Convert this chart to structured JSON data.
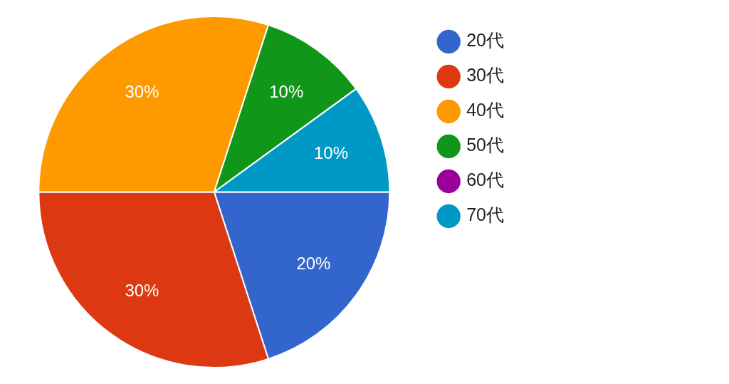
{
  "chart_data": {
    "type": "pie",
    "categories": [
      "20代",
      "30代",
      "40代",
      "50代",
      "60代",
      "70代"
    ],
    "values": [
      20,
      30,
      30,
      10,
      0,
      10
    ],
    "colors": [
      "#3366cc",
      "#dc3912",
      "#ff9900",
      "#109618",
      "#990099",
      "#0099c6"
    ],
    "value_labels": [
      "20%",
      "30%",
      "30%",
      "10%",
      null,
      "10%"
    ],
    "legend": "top right"
  }
}
